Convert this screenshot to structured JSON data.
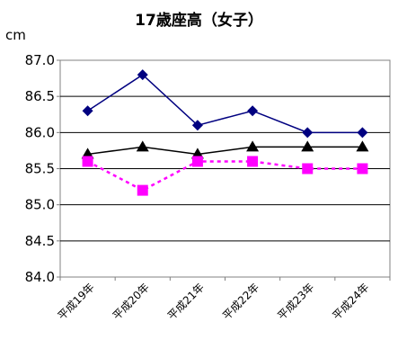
{
  "chart_data": {
    "type": "line",
    "title": "17歳座高（女子）",
    "ylabel": "cm",
    "xlabel": "",
    "categories": [
      "平成19年",
      "平成20年",
      "平成21年",
      "平成22年",
      "平成23年",
      "平成24年"
    ],
    "ylim": [
      84.0,
      87.0
    ],
    "ytick_labels": [
      "84.0",
      "84.5",
      "85.0",
      "85.5",
      "86.0",
      "86.5",
      "87.0"
    ],
    "grid": true,
    "legend": "none",
    "series": [
      {
        "values": [
          86.3,
          86.8,
          86.1,
          86.3,
          86.0,
          86.0
        ],
        "color": "#000080",
        "marker": "diamond",
        "line": "solid"
      },
      {
        "values": [
          85.7,
          85.8,
          85.7,
          85.8,
          85.8,
          85.8
        ],
        "color": "#000000",
        "marker": "triangle",
        "line": "solid"
      },
      {
        "values": [
          85.6,
          85.2,
          85.6,
          85.6,
          85.5,
          85.5
        ],
        "color": "#ff00ff",
        "marker": "square",
        "line": "dashed"
      }
    ]
  }
}
